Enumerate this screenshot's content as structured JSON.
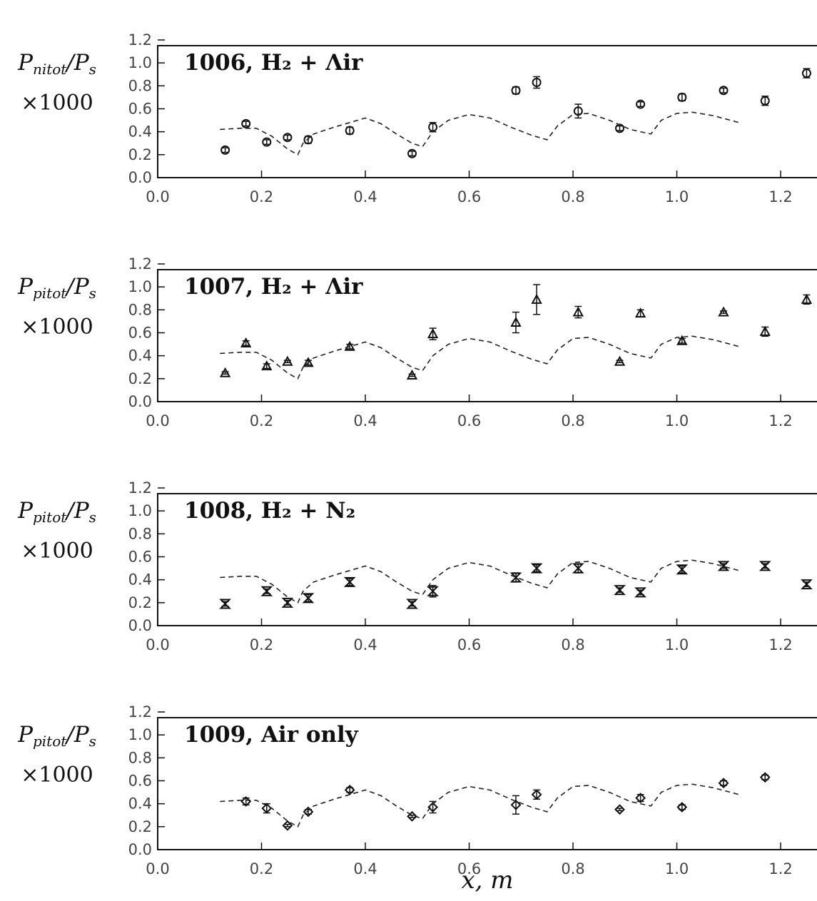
{
  "chart_data": [
    {
      "type": "scatter",
      "title": "1006, H₂ + Λir",
      "ylabel": "P_nitot/P_s",
      "ylabel_line2": "×1000",
      "xlabel": "",
      "xlim": [
        0.0,
        1.27
      ],
      "ylim": [
        0.0,
        1.2
      ],
      "xticks": [
        "0.0",
        "0.2",
        "0.4",
        "0.6",
        "0.8",
        "1.0",
        "1.2"
      ],
      "yticks": [
        "0.0",
        "0.2",
        "0.4",
        "0.6",
        "0.8",
        "1.0",
        "1.2"
      ],
      "grid": false,
      "marker": "circle",
      "series": [
        {
          "kind": "points",
          "x": [
            0.13,
            0.17,
            0.21,
            0.25,
            0.29,
            0.37,
            0.49,
            0.53,
            0.69,
            0.73,
            0.81,
            0.89,
            0.93,
            1.01,
            1.09,
            1.17,
            1.25
          ],
          "y": [
            0.24,
            0.47,
            0.31,
            0.35,
            0.33,
            0.41,
            0.21,
            0.44,
            0.76,
            0.83,
            0.58,
            0.43,
            0.64,
            0.7,
            0.76,
            0.67,
            0.91
          ],
          "err": [
            0.02,
            0.02,
            0.02,
            0.02,
            0.03,
            0.03,
            0.02,
            0.04,
            0.03,
            0.05,
            0.06,
            0.02,
            0.02,
            0.03,
            0.02,
            0.04,
            0.04
          ]
        },
        {
          "kind": "dashed",
          "x": [
            0.12,
            0.16,
            0.19,
            0.22,
            0.25,
            0.27,
            0.28,
            0.3,
            0.34,
            0.37,
            0.4,
            0.43,
            0.46,
            0.49,
            0.51,
            0.53,
            0.56,
            0.6,
            0.64,
            0.68,
            0.72,
            0.75,
            0.77,
            0.8,
            0.83,
            0.87,
            0.91,
            0.95,
            0.97,
            1.0,
            1.03,
            1.07,
            1.12
          ],
          "y": [
            0.42,
            0.43,
            0.43,
            0.36,
            0.25,
            0.2,
            0.3,
            0.38,
            0.44,
            0.48,
            0.52,
            0.47,
            0.38,
            0.3,
            0.27,
            0.4,
            0.5,
            0.55,
            0.52,
            0.44,
            0.37,
            0.33,
            0.45,
            0.55,
            0.56,
            0.5,
            0.42,
            0.38,
            0.5,
            0.56,
            0.57,
            0.54,
            0.48
          ]
        }
      ]
    },
    {
      "type": "scatter",
      "title": "1007, H₂ + Λir",
      "ylabel": "P_pitot/P_s",
      "ylabel_line2": "×1000",
      "xlabel": "",
      "xlim": [
        0.0,
        1.27
      ],
      "ylim": [
        0.0,
        1.2
      ],
      "xticks": [
        "0.0",
        "0.2",
        "0.4",
        "0.6",
        "0.8",
        "1.0",
        "1.2"
      ],
      "yticks": [
        "0.0",
        "0.2",
        "0.4",
        "0.6",
        "0.8",
        "1.0",
        "1.2"
      ],
      "grid": false,
      "marker": "triangle",
      "series": [
        {
          "kind": "points",
          "x": [
            0.13,
            0.17,
            0.21,
            0.25,
            0.29,
            0.37,
            0.49,
            0.53,
            0.69,
            0.73,
            0.81,
            0.89,
            0.93,
            1.01,
            1.09,
            1.17,
            1.25
          ],
          "y": [
            0.25,
            0.51,
            0.31,
            0.35,
            0.34,
            0.48,
            0.23,
            0.59,
            0.69,
            0.89,
            0.78,
            0.35,
            0.77,
            0.53,
            0.78,
            0.61,
            0.89
          ],
          "err": [
            0.01,
            0.02,
            0.02,
            0.01,
            0.02,
            0.02,
            0.01,
            0.05,
            0.09,
            0.13,
            0.05,
            0.01,
            0.03,
            0.02,
            0.01,
            0.04,
            0.04
          ]
        },
        {
          "kind": "dashed",
          "x": [
            0.12,
            0.16,
            0.19,
            0.22,
            0.25,
            0.27,
            0.28,
            0.3,
            0.34,
            0.37,
            0.4,
            0.43,
            0.46,
            0.49,
            0.51,
            0.53,
            0.56,
            0.6,
            0.64,
            0.68,
            0.72,
            0.75,
            0.77,
            0.8,
            0.83,
            0.87,
            0.91,
            0.95,
            0.97,
            1.0,
            1.03,
            1.07,
            1.12
          ],
          "y": [
            0.42,
            0.43,
            0.43,
            0.36,
            0.25,
            0.2,
            0.3,
            0.38,
            0.44,
            0.48,
            0.52,
            0.47,
            0.38,
            0.3,
            0.27,
            0.4,
            0.5,
            0.55,
            0.52,
            0.44,
            0.37,
            0.33,
            0.45,
            0.55,
            0.56,
            0.5,
            0.42,
            0.38,
            0.5,
            0.56,
            0.57,
            0.54,
            0.48
          ]
        }
      ]
    },
    {
      "type": "scatter",
      "title": "1008, H₂ + N₂",
      "ylabel": "P_pitot/P_s",
      "ylabel_line2": "×1000",
      "xlabel": "",
      "xlim": [
        0.0,
        1.27
      ],
      "ylim": [
        0.0,
        1.2
      ],
      "xticks": [
        "0.0",
        "0.2",
        "0.4",
        "0.6",
        "0.8",
        "1.0",
        "1.2"
      ],
      "yticks": [
        "0.0",
        "0.2",
        "0.4",
        "0.6",
        "0.8",
        "1.0",
        "1.2"
      ],
      "grid": false,
      "marker": "hourglass",
      "series": [
        {
          "kind": "points",
          "x": [
            0.13,
            0.21,
            0.25,
            0.29,
            0.37,
            0.49,
            0.53,
            0.69,
            0.73,
            0.81,
            0.89,
            0.93,
            1.01,
            1.09,
            1.17,
            1.25
          ],
          "y": [
            0.19,
            0.3,
            0.2,
            0.24,
            0.38,
            0.19,
            0.3,
            0.42,
            0.5,
            0.5,
            0.31,
            0.29,
            0.49,
            0.52,
            0.52,
            0.36
          ],
          "err": [
            0.02,
            0.02,
            0.02,
            0.03,
            0.03,
            0.02,
            0.05,
            0.04,
            0.03,
            0.04,
            0.02,
            0.02,
            0.03,
            0.02,
            0.02,
            0.02
          ]
        },
        {
          "kind": "dashed",
          "x": [
            0.12,
            0.16,
            0.19,
            0.22,
            0.25,
            0.27,
            0.28,
            0.3,
            0.34,
            0.37,
            0.4,
            0.43,
            0.46,
            0.49,
            0.51,
            0.53,
            0.56,
            0.6,
            0.64,
            0.68,
            0.72,
            0.75,
            0.77,
            0.8,
            0.83,
            0.87,
            0.91,
            0.95,
            0.97,
            1.0,
            1.03,
            1.07,
            1.12
          ],
          "y": [
            0.42,
            0.43,
            0.43,
            0.36,
            0.25,
            0.2,
            0.3,
            0.38,
            0.44,
            0.48,
            0.52,
            0.47,
            0.38,
            0.3,
            0.27,
            0.4,
            0.5,
            0.55,
            0.52,
            0.44,
            0.37,
            0.33,
            0.45,
            0.55,
            0.56,
            0.5,
            0.42,
            0.38,
            0.5,
            0.56,
            0.57,
            0.54,
            0.48
          ]
        }
      ]
    },
    {
      "type": "scatter",
      "title": "1009, Air only",
      "ylabel": "P_pitot/P_s",
      "ylabel_line2": "×1000",
      "xlabel": "x,  m",
      "xlim": [
        0.0,
        1.27
      ],
      "ylim": [
        0.0,
        1.2
      ],
      "xticks": [
        "0.0",
        "0.2",
        "0.4",
        "0.6",
        "0.8",
        "1.0",
        "1.2"
      ],
      "yticks": [
        "0.0",
        "0.2",
        "0.4",
        "0.6",
        "0.8",
        "1.0",
        "1.2"
      ],
      "grid": false,
      "marker": "diamond",
      "series": [
        {
          "kind": "points",
          "x": [
            0.17,
            0.21,
            0.25,
            0.29,
            0.37,
            0.49,
            0.53,
            0.69,
            0.73,
            0.89,
            0.93,
            1.01,
            1.09,
            1.17
          ],
          "y": [
            0.42,
            0.36,
            0.21,
            0.33,
            0.52,
            0.29,
            0.37,
            0.39,
            0.48,
            0.35,
            0.45,
            0.37,
            0.58,
            0.63
          ],
          "err": [
            0.03,
            0.04,
            0.01,
            0.02,
            0.02,
            0.01,
            0.05,
            0.08,
            0.04,
            0.01,
            0.03,
            0.02,
            0.02,
            0.02
          ]
        },
        {
          "kind": "dashed",
          "x": [
            0.12,
            0.16,
            0.19,
            0.22,
            0.25,
            0.27,
            0.28,
            0.3,
            0.34,
            0.37,
            0.4,
            0.43,
            0.46,
            0.49,
            0.51,
            0.53,
            0.56,
            0.6,
            0.64,
            0.68,
            0.72,
            0.75,
            0.77,
            0.8,
            0.83,
            0.87,
            0.91,
            0.95,
            0.97,
            1.0,
            1.03,
            1.07,
            1.12
          ],
          "y": [
            0.42,
            0.43,
            0.43,
            0.36,
            0.25,
            0.2,
            0.3,
            0.38,
            0.44,
            0.48,
            0.52,
            0.47,
            0.38,
            0.3,
            0.27,
            0.4,
            0.5,
            0.55,
            0.52,
            0.44,
            0.37,
            0.33,
            0.45,
            0.55,
            0.56,
            0.5,
            0.42,
            0.38,
            0.5,
            0.56,
            0.57,
            0.54,
            0.48
          ]
        }
      ]
    }
  ]
}
